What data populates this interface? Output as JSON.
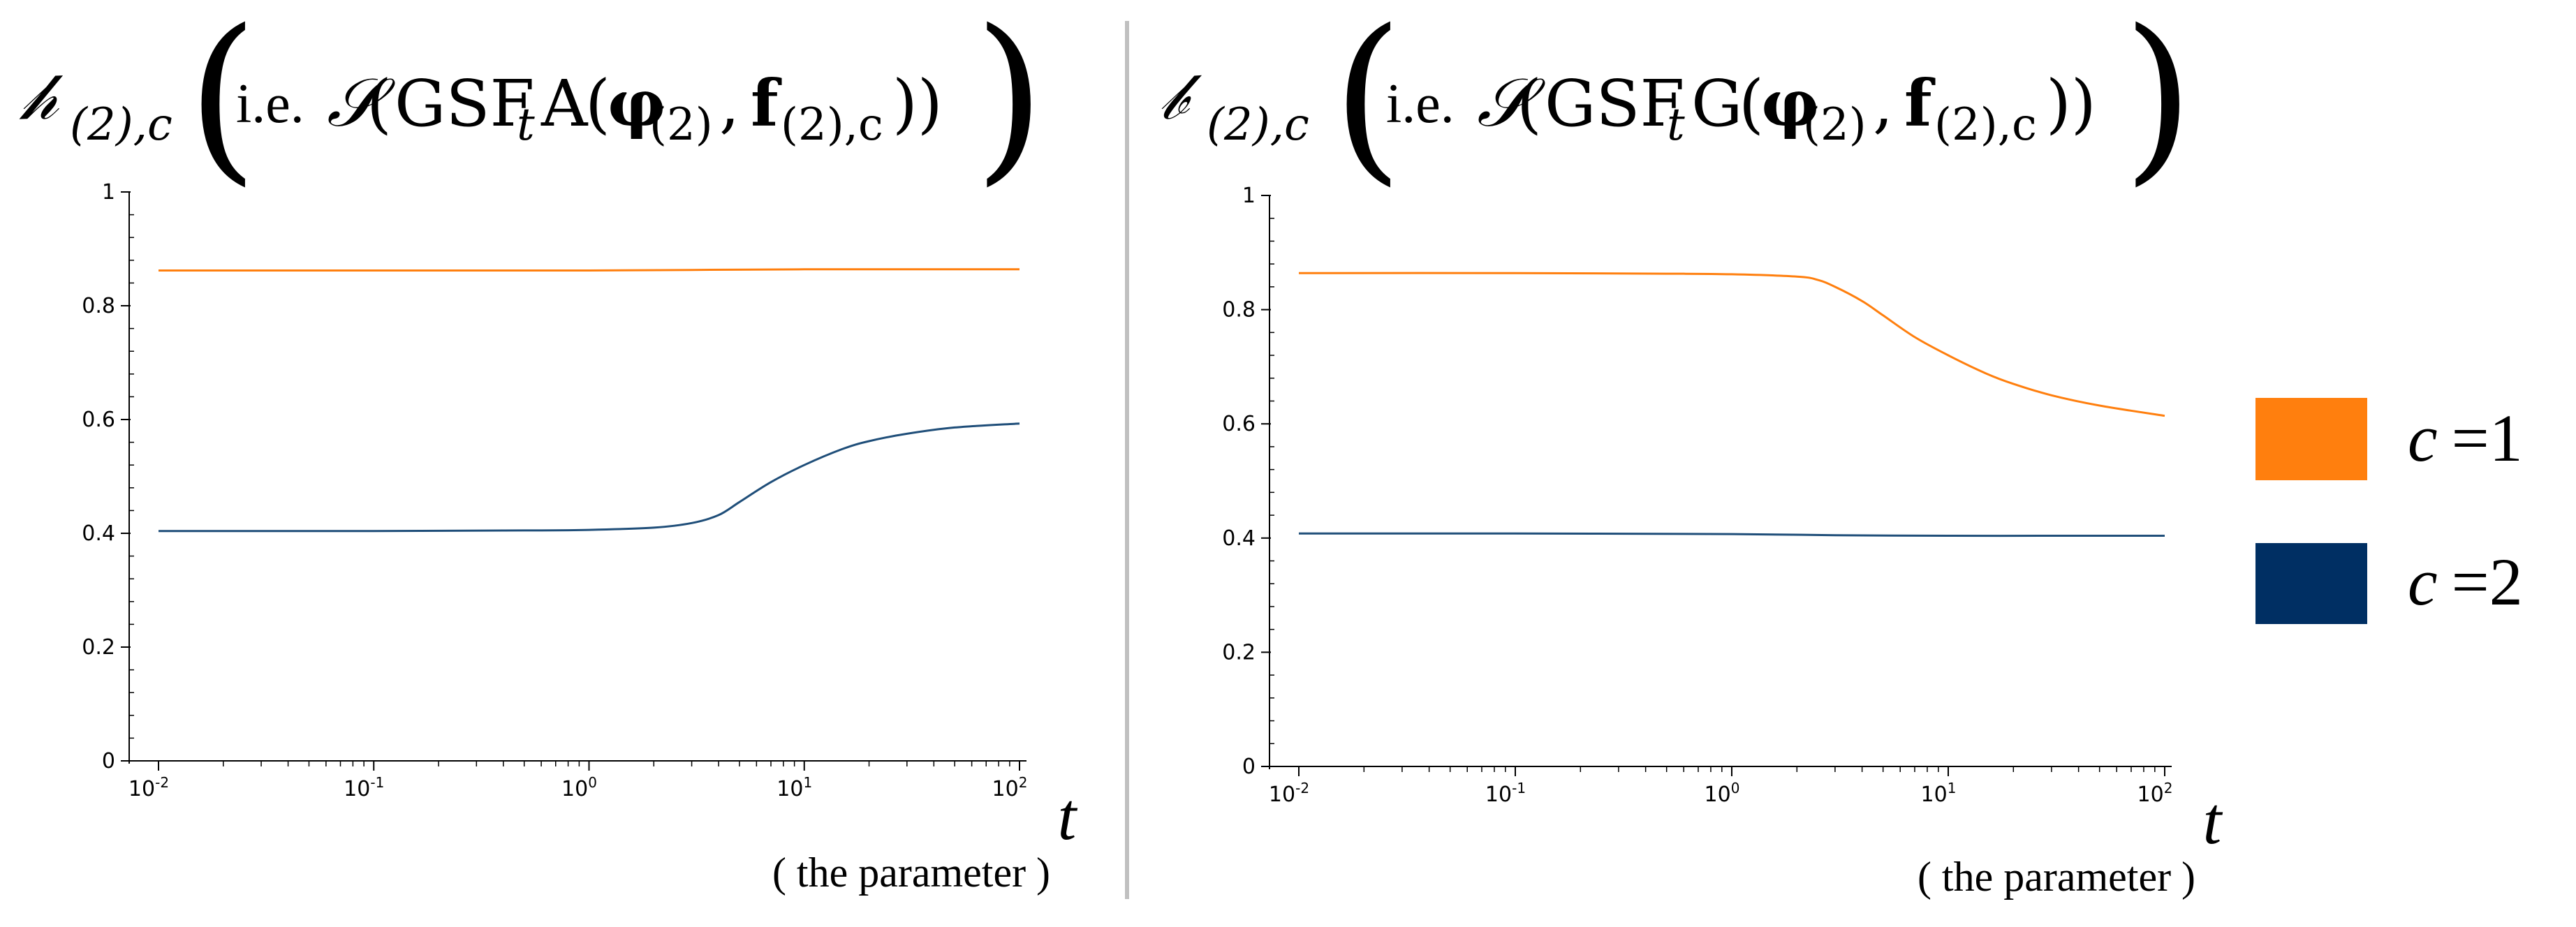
{
  "chart_data": [
    {
      "type": "line",
      "title": {
        "symbol": "𝒽",
        "subscript": "(2),c",
        "ie": "i.e.",
        "func": "𝒮",
        "inner_prefix": "GSF",
        "inner_sub": "t",
        "inner_op": "A",
        "arg1": "φ",
        "arg1_sub": "(2)",
        "arg2": "f",
        "arg2_sub": "(2),c"
      },
      "xscale": "log",
      "xlim": [
        0.01,
        100
      ],
      "ylim": [
        0,
        1
      ],
      "x_ticks": [
        {
          "base": "10",
          "exp": "-2"
        },
        {
          "base": "10",
          "exp": "-1"
        },
        {
          "base": "10",
          "exp": "0"
        },
        {
          "base": "10",
          "exp": "1"
        },
        {
          "base": "10",
          "exp": "2"
        }
      ],
      "y_ticks": [
        "0",
        "0.2",
        "0.4",
        "0.6",
        "0.8",
        "1"
      ],
      "xlabel": "t",
      "xlabel_note": "( the parameter )",
      "series": [
        {
          "name": "c =1",
          "color": "#ff7f0e",
          "x": [
            0.01,
            0.1,
            1,
            3,
            10,
            30,
            100
          ],
          "y": [
            0.862,
            0.862,
            0.862,
            0.863,
            0.864,
            0.864,
            0.864
          ]
        },
        {
          "name": "c =2",
          "color": "#1f4e79",
          "x": [
            0.01,
            0.1,
            0.5,
            1,
            2,
            3,
            4,
            5,
            7,
            10,
            15,
            20,
            30,
            50,
            100
          ],
          "y": [
            0.404,
            0.404,
            0.405,
            0.406,
            0.41,
            0.418,
            0.432,
            0.455,
            0.49,
            0.52,
            0.548,
            0.562,
            0.575,
            0.586,
            0.593
          ]
        }
      ]
    },
    {
      "type": "line",
      "title": {
        "symbol": "𝒷",
        "subscript": "(2),c",
        "ie": "i.e.",
        "func": "𝒮",
        "inner_prefix": "GSF",
        "inner_sub": "t",
        "inner_op": "G",
        "arg1": "φ",
        "arg1_sub": "(2)",
        "arg2": "f",
        "arg2_sub": "(2),c"
      },
      "xscale": "log",
      "xlim": [
        0.01,
        100
      ],
      "ylim": [
        0,
        1
      ],
      "x_ticks": [
        {
          "base": "10",
          "exp": "-2"
        },
        {
          "base": "10",
          "exp": "-1"
        },
        {
          "base": "10",
          "exp": "0"
        },
        {
          "base": "10",
          "exp": "1"
        },
        {
          "base": "10",
          "exp": "2"
        }
      ],
      "y_ticks": [
        "0",
        "0.2",
        "0.4",
        "0.6",
        "0.8",
        "1"
      ],
      "xlabel": "t",
      "xlabel_note": "( the parameter )",
      "series": [
        {
          "name": "c =1",
          "color": "#ff7f0e",
          "x": [
            0.01,
            0.1,
            0.5,
            1,
            2,
            2.5,
            3,
            4,
            5,
            7,
            10,
            15,
            20,
            30,
            50,
            100
          ],
          "y": [
            0.864,
            0.864,
            0.863,
            0.862,
            0.858,
            0.852,
            0.84,
            0.815,
            0.79,
            0.752,
            0.72,
            0.688,
            0.67,
            0.65,
            0.632,
            0.614
          ]
        },
        {
          "name": "c =2",
          "color": "#1f4e79",
          "x": [
            0.01,
            0.1,
            1,
            3,
            10,
            30,
            100
          ],
          "y": [
            0.408,
            0.408,
            0.407,
            0.405,
            0.404,
            0.404,
            0.404
          ]
        }
      ]
    }
  ],
  "legend": [
    {
      "var": "c",
      "eq": "=",
      "value": "1",
      "color": "#ff7f0e"
    },
    {
      "var": "c",
      "eq": "=",
      "value": "2",
      "color": "#002f63"
    }
  ],
  "divider_color": "#c0c0c0"
}
